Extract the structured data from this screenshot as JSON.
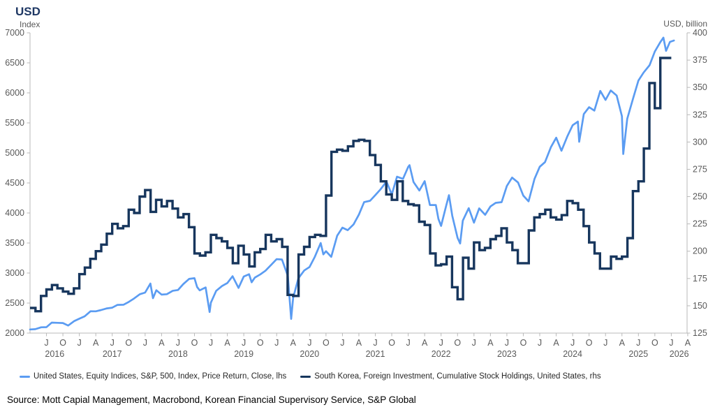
{
  "header": {
    "title": "USD",
    "left_axis_unit": "Index",
    "right_axis_unit": "USD, billion"
  },
  "colors": {
    "sp500": "#5b9cf2",
    "korea": "#17365d",
    "axis_line": "#b9b9b9",
    "tick_label": "#595959",
    "title": "#1f3864",
    "legend_text": "#262626"
  },
  "legend": [
    {
      "label": "United States, Equity Indices, S&P, 500, Index, Price Return, Close, lhs",
      "color_key": "sp500"
    },
    {
      "label": "South Korea, Foreign Investment, Cumulative Stock Holdings, United States, rhs",
      "color_key": "korea"
    }
  ],
  "source": "Source: Mott Capial Management, Macrobond, Korean Financial Supervisory Service, S&P Global",
  "chart_data": {
    "type": "line",
    "title": "USD",
    "x_domain": [
      2016.25,
      2026.24
    ],
    "left_axis": {
      "label": "Index",
      "min": 2000,
      "max": 7000,
      "ticks": [
        2000,
        2500,
        3000,
        3500,
        4000,
        4500,
        5000,
        5500,
        6000,
        6500,
        7000
      ]
    },
    "right_axis": {
      "label": "USD, billion",
      "min": 125,
      "max": 400,
      "ticks": [
        125,
        150,
        175,
        200,
        225,
        250,
        275,
        300,
        325,
        350,
        375,
        400
      ]
    },
    "x_quarter_ticks": {
      "first": 2016.5,
      "last": 2026.25,
      "step": 0.25
    },
    "phase_letters": {
      "0.00": "J",
      "0.25": "A",
      "0.50": "J",
      "0.75": "O"
    },
    "x_year_labels": [
      2016,
      2017,
      2018,
      2019,
      2020,
      2021,
      2022,
      2023,
      2024,
      2025,
      2026
    ],
    "grid": false,
    "legend_position": "bottom",
    "series": [
      {
        "name": "United States, Equity Indices, S&P, 500, Index, Price Return, Close, lhs",
        "axis": "left",
        "style": "line",
        "color_key": "sp500",
        "points": [
          [
            2016.25,
            2060
          ],
          [
            2016.33,
            2065
          ],
          [
            2016.42,
            2097
          ],
          [
            2016.5,
            2099
          ],
          [
            2016.58,
            2174
          ],
          [
            2016.67,
            2171
          ],
          [
            2016.75,
            2168
          ],
          [
            2016.83,
            2126
          ],
          [
            2016.92,
            2199
          ],
          [
            2017,
            2239
          ],
          [
            2017.08,
            2279
          ],
          [
            2017.17,
            2364
          ],
          [
            2017.25,
            2363
          ],
          [
            2017.33,
            2384
          ],
          [
            2017.42,
            2412
          ],
          [
            2017.5,
            2423
          ],
          [
            2017.58,
            2470
          ],
          [
            2017.67,
            2472
          ],
          [
            2017.75,
            2519
          ],
          [
            2017.83,
            2575
          ],
          [
            2017.92,
            2648
          ],
          [
            2018,
            2674
          ],
          [
            2018.08,
            2824
          ],
          [
            2018.12,
            2581
          ],
          [
            2018.17,
            2714
          ],
          [
            2018.25,
            2641
          ],
          [
            2018.33,
            2648
          ],
          [
            2018.42,
            2705
          ],
          [
            2018.5,
            2718
          ],
          [
            2018.58,
            2816
          ],
          [
            2018.67,
            2902
          ],
          [
            2018.75,
            2914
          ],
          [
            2018.79,
            2768
          ],
          [
            2018.83,
            2712
          ],
          [
            2018.92,
            2760
          ],
          [
            2018.98,
            2351
          ],
          [
            2019,
            2507
          ],
          [
            2019.08,
            2704
          ],
          [
            2019.17,
            2784
          ],
          [
            2019.25,
            2834
          ],
          [
            2019.33,
            2946
          ],
          [
            2019.42,
            2752
          ],
          [
            2019.5,
            2942
          ],
          [
            2019.58,
            2980
          ],
          [
            2019.62,
            2847
          ],
          [
            2019.67,
            2926
          ],
          [
            2019.75,
            2977
          ],
          [
            2019.83,
            3038
          ],
          [
            2019.92,
            3141
          ],
          [
            2020,
            3231
          ],
          [
            2020.08,
            3226
          ],
          [
            2020.17,
            2954
          ],
          [
            2020.22,
            2237
          ],
          [
            2020.25,
            2585
          ],
          [
            2020.33,
            2912
          ],
          [
            2020.42,
            3044
          ],
          [
            2020.5,
            3100
          ],
          [
            2020.58,
            3271
          ],
          [
            2020.67,
            3500
          ],
          [
            2020.71,
            3310
          ],
          [
            2020.75,
            3363
          ],
          [
            2020.83,
            3270
          ],
          [
            2020.92,
            3622
          ],
          [
            2021,
            3756
          ],
          [
            2021.08,
            3714
          ],
          [
            2021.17,
            3811
          ],
          [
            2021.25,
            3973
          ],
          [
            2021.33,
            4181
          ],
          [
            2021.42,
            4204
          ],
          [
            2021.5,
            4298
          ],
          [
            2021.58,
            4395
          ],
          [
            2021.67,
            4523
          ],
          [
            2021.75,
            4308
          ],
          [
            2021.83,
            4605
          ],
          [
            2021.92,
            4567
          ],
          [
            2022,
            4766
          ],
          [
            2022.02,
            4797
          ],
          [
            2022.08,
            4516
          ],
          [
            2022.17,
            4374
          ],
          [
            2022.25,
            4530
          ],
          [
            2022.33,
            4132
          ],
          [
            2022.42,
            4132
          ],
          [
            2022.46,
            3901
          ],
          [
            2022.5,
            3785
          ],
          [
            2022.58,
            4130
          ],
          [
            2022.62,
            4297
          ],
          [
            2022.67,
            3955
          ],
          [
            2022.75,
            3586
          ],
          [
            2022.79,
            3492
          ],
          [
            2022.83,
            3872
          ],
          [
            2022.92,
            4080
          ],
          [
            2023,
            3840
          ],
          [
            2023.08,
            4077
          ],
          [
            2023.17,
            3970
          ],
          [
            2023.25,
            4109
          ],
          [
            2023.33,
            4169
          ],
          [
            2023.42,
            4180
          ],
          [
            2023.5,
            4450
          ],
          [
            2023.58,
            4589
          ],
          [
            2023.67,
            4508
          ],
          [
            2023.75,
            4288
          ],
          [
            2023.83,
            4194
          ],
          [
            2023.92,
            4568
          ],
          [
            2024,
            4770
          ],
          [
            2024.08,
            4846
          ],
          [
            2024.17,
            5096
          ],
          [
            2024.25,
            5254
          ],
          [
            2024.33,
            5036
          ],
          [
            2024.42,
            5278
          ],
          [
            2024.5,
            5460
          ],
          [
            2024.58,
            5522
          ],
          [
            2024.6,
            5186
          ],
          [
            2024.67,
            5648
          ],
          [
            2024.75,
            5762
          ],
          [
            2024.83,
            5705
          ],
          [
            2024.92,
            6032
          ],
          [
            2025,
            5882
          ],
          [
            2025.08,
            6041
          ],
          [
            2025.17,
            5955
          ],
          [
            2025.25,
            5612
          ],
          [
            2025.27,
            4983
          ],
          [
            2025.33,
            5569
          ],
          [
            2025.42,
            5912
          ],
          [
            2025.5,
            6205
          ],
          [
            2025.58,
            6339
          ],
          [
            2025.67,
            6460
          ],
          [
            2025.75,
            6688
          ],
          [
            2025.83,
            6840
          ],
          [
            2025.88,
            6920
          ],
          [
            2025.92,
            6700
          ],
          [
            2025.98,
            6849
          ],
          [
            2026.04,
            6872
          ]
        ]
      },
      {
        "name": "South Korea, Foreign Investment, Cumulative Stock Holdings, United States, rhs",
        "axis": "right",
        "style": "step",
        "color_key": "korea",
        "step_start": 2016.25,
        "step_months": 1,
        "monthly_values": [
          148,
          145,
          159,
          165,
          169,
          166,
          163,
          161,
          166,
          179,
          185,
          193,
          200,
          206,
          216,
          225,
          221,
          223,
          238,
          235,
          250,
          256,
          236,
          247,
          241,
          246,
          239,
          231,
          234,
          222,
          198,
          196,
          199,
          215,
          212,
          209,
          203,
          189,
          205,
          197,
          186,
          199,
          202,
          215,
          209,
          211,
          204,
          160,
          159,
          197,
          204,
          213,
          215,
          214,
          251,
          291,
          293,
          292,
          296,
          301,
          302,
          301,
          288,
          279,
          264,
          252,
          247,
          264,
          246,
          243,
          242,
          227,
          224,
          198,
          187,
          188,
          195,
          167,
          156,
          194,
          184,
          208,
          201,
          203,
          211,
          214,
          221,
          208,
          201,
          189,
          189,
          219,
          231,
          234,
          238,
          231,
          229,
          233,
          246,
          244,
          238,
          223,
          208,
          198,
          184,
          184,
          195,
          193,
          195,
          212,
          255,
          264,
          294,
          354,
          331,
          377,
          377
        ]
      }
    ]
  }
}
